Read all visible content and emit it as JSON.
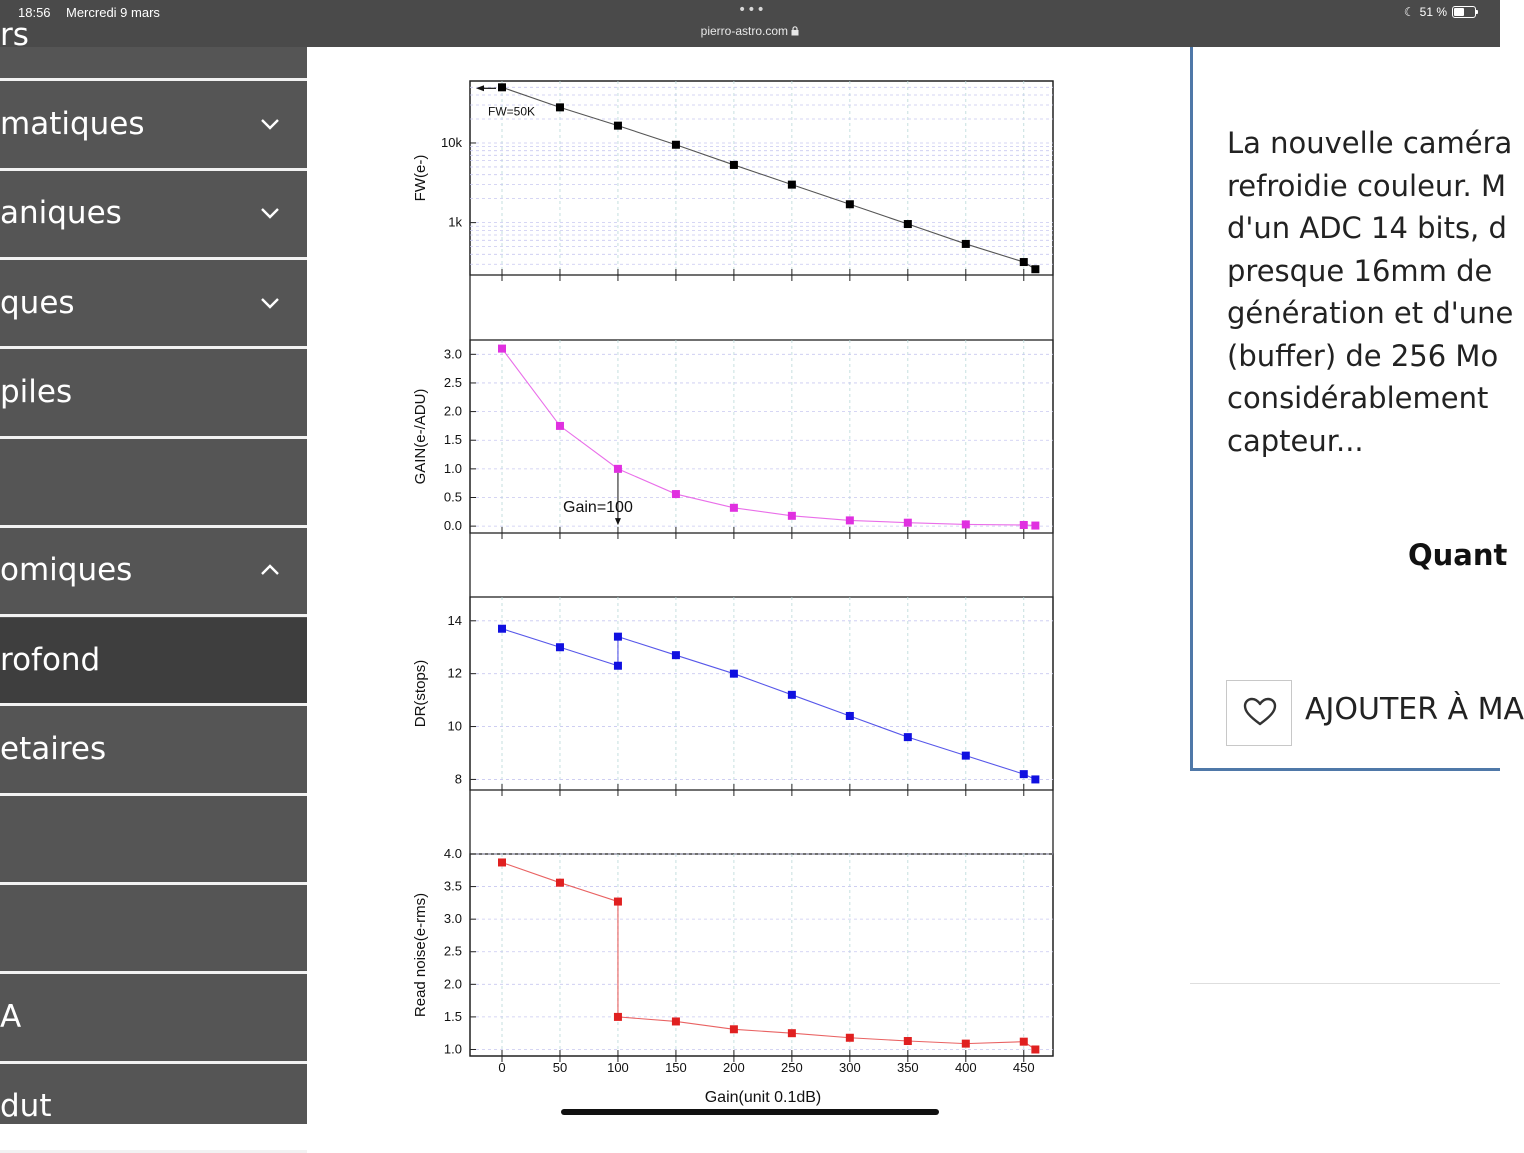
{
  "status_bar": {
    "time": "18:56",
    "date": "Mercredi 9 mars",
    "url": "pierro-astro.com",
    "battery": "51 %",
    "battery_level": 0.51
  },
  "sidebar": {
    "items": [
      {
        "label": "rs",
        "chevron": "none"
      },
      {
        "label": "matiques",
        "chevron": "down"
      },
      {
        "label": "aniques",
        "chevron": "down"
      },
      {
        "label": "ques",
        "chevron": "down"
      },
      {
        "label": "piles",
        "chevron": "none"
      },
      {
        "label": "",
        "chevron": "none"
      },
      {
        "label": "omiques",
        "chevron": "up"
      },
      {
        "label": "rofond",
        "chevron": "none",
        "active": true
      },
      {
        "label": "etaires",
        "chevron": "none"
      },
      {
        "label": "",
        "chevron": "none"
      },
      {
        "label": "",
        "chevron": "none"
      },
      {
        "label": "A",
        "chevron": "none"
      },
      {
        "label": "dut",
        "chevron": "none"
      }
    ]
  },
  "chart_data": [
    {
      "type": "line",
      "ylabel": "FW(e-)",
      "yscale": "log",
      "yticks": [
        "1k",
        "10k"
      ],
      "annotation": "FW=50K",
      "color": "#000000",
      "x": [
        0,
        50,
        100,
        150,
        200,
        250,
        300,
        350,
        400,
        450,
        460
      ],
      "y": [
        50000,
        28000,
        16500,
        9500,
        5300,
        3000,
        1700,
        960,
        540,
        320,
        260
      ]
    },
    {
      "type": "line",
      "ylabel": "GAIN(e-/ADU)",
      "yticks": [
        "0.0",
        "0.5",
        "1.0",
        "1.5",
        "2.0",
        "2.5",
        "3.0"
      ],
      "annotation": "Gain=100",
      "color": "#e030e0",
      "x": [
        0,
        50,
        100,
        150,
        200,
        250,
        300,
        350,
        400,
        450,
        460
      ],
      "y": [
        3.1,
        1.75,
        1.0,
        0.56,
        0.32,
        0.18,
        0.1,
        0.06,
        0.03,
        0.02,
        0.01
      ]
    },
    {
      "type": "line",
      "ylabel": "DR(stops)",
      "yticks": [
        "8",
        "10",
        "12",
        "14"
      ],
      "color": "#1010e0",
      "x": [
        0,
        50,
        100,
        100,
        150,
        200,
        250,
        300,
        350,
        400,
        450,
        460
      ],
      "y": [
        13.7,
        13.0,
        12.3,
        13.4,
        12.7,
        12.0,
        11.2,
        10.4,
        9.6,
        8.9,
        8.2,
        8.0
      ]
    },
    {
      "type": "line",
      "ylabel": "Read noise(e-rms)",
      "yticks": [
        "1.0",
        "1.5",
        "2.0",
        "2.5",
        "3.0",
        "3.5",
        "4.0"
      ],
      "color": "#e02020",
      "x": [
        0,
        50,
        100,
        100,
        150,
        200,
        250,
        300,
        350,
        400,
        450,
        460
      ],
      "y": [
        3.87,
        3.56,
        3.27,
        1.5,
        1.43,
        1.31,
        1.25,
        1.18,
        1.13,
        1.09,
        1.12,
        1.0
      ]
    }
  ],
  "chart_axis": {
    "xlabel": "Gain(unit 0.1dB)",
    "xticks": [
      "0",
      "50",
      "100",
      "150",
      "200",
      "250",
      "300",
      "350",
      "400",
      "450"
    ]
  },
  "right_panel": {
    "lines": [
      "La nouvelle caméra",
      "refroidie couleur. M",
      "d'un ADC 14 bits, d",
      "presque 16mm de",
      "génération et d'une",
      "(buffer) de 256 Mo",
      "considérablement",
      "capteur..."
    ],
    "bold_heading": "Quant",
    "wishlist_label": "AJOUTER À MA"
  }
}
